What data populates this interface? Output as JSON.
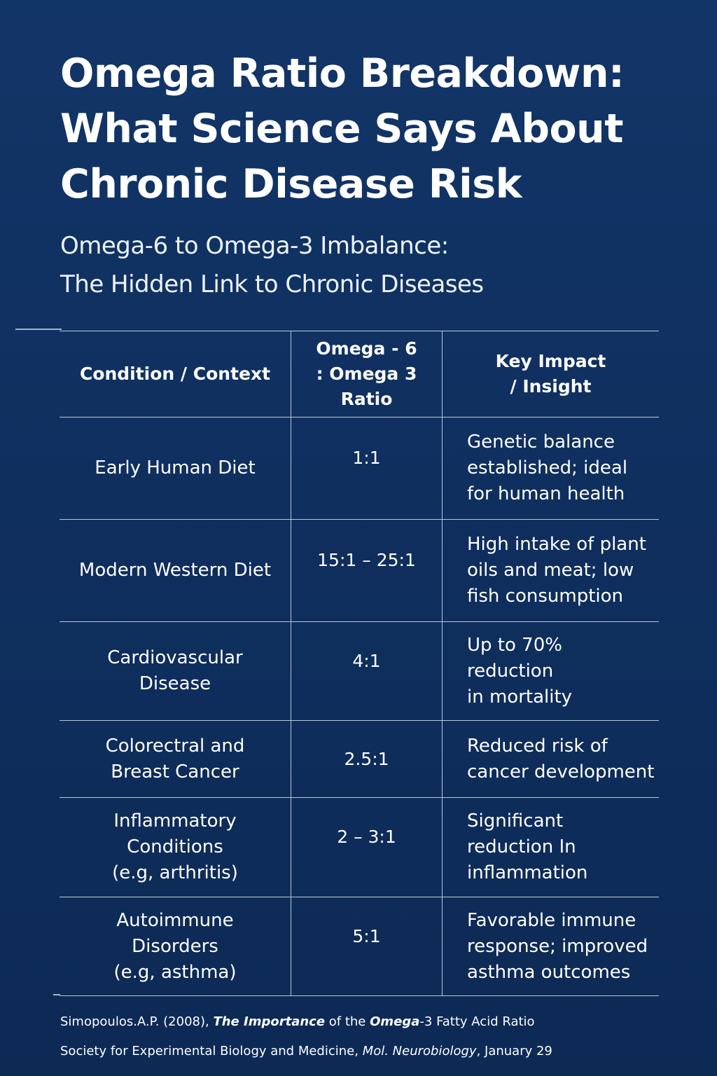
{
  "header": {
    "title": "Omega Ratio Breakdown: What Science Says About Chronic Disease Risk",
    "subtitle_line1": "Omega-6 to Omega-3 Imbalance:",
    "subtitle_line2": "The Hidden Link to Chronic Diseases"
  },
  "table": {
    "headers": {
      "condition": "Condition / Context",
      "ratio_line1": "Omega - 6",
      "ratio_line2": ": Omega 3 Ratio",
      "impact_line1": "Key Impact",
      "impact_line2": "/ Insight"
    },
    "rows": [
      {
        "condition": "Early Human Diet",
        "ratio": "1:1",
        "impact": "Genetic balance\nestablished; ideal\nfor human health"
      },
      {
        "condition": "Modern Western Diet",
        "ratio": "15:1 – 25:1",
        "impact": "High intake of plant\noils and meat; low\nfish consumption"
      },
      {
        "condition": "Cardiovascular\nDisease",
        "ratio": "4:1",
        "impact": "Up to 70%\nreduction\nin mortality"
      },
      {
        "condition": "Colorectral and\nBreast Cancer",
        "ratio": "2.5:1",
        "impact": "Reduced risk of\ncancer development"
      },
      {
        "condition": "Inflammatory\nConditions\n(e.g, arthritis)",
        "ratio": "2 – 3:1",
        "impact": "Significant\nreduction In\ninflammation"
      },
      {
        "condition": "Autoimmune\nDisorders\n(e.g, asthma)",
        "ratio": "5:1",
        "impact": "Favorable immune\nresponse; improved\nasthma outcomes"
      }
    ]
  },
  "citation": {
    "line1_part1": "Simopoulos.A.P. (2008),  ",
    "line1_part2": "The Importance",
    "line1_part3": " of the ",
    "line1_part4": "Omega",
    "line1_part5": "-3 Fatty Acid Ratio",
    "line2_part1": "Society for Experimental Biology and Medicine, ",
    "line2_part2": "Mol. Neurobiology",
    "line2_part3": ", January 29"
  }
}
